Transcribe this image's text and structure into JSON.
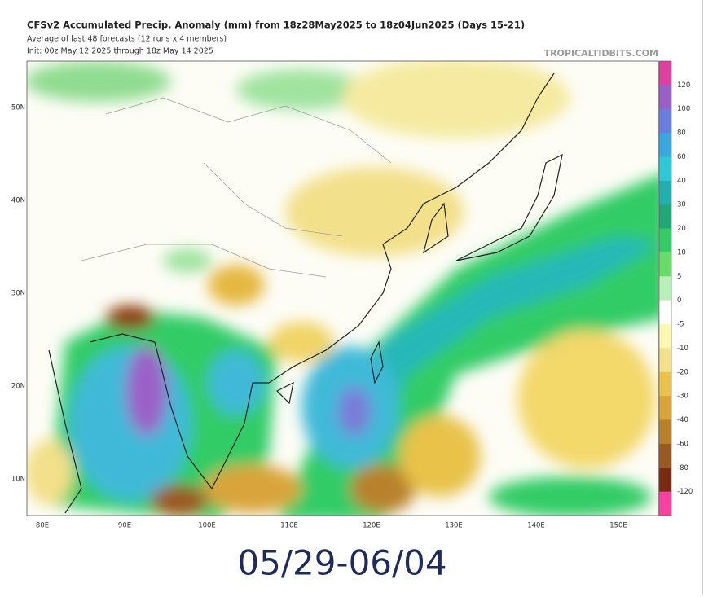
{
  "header": {
    "title": "CFSv2 Accumulated Precip. Anomaly (mm) from 18z28May2025 to 18z04Jun2025 (Days 15-21)",
    "subtitle": "Average of last 48 forecasts (12 runs x 4 members)",
    "init": "Init: 00z May 12 2025 through 18z May 14 2025",
    "watermark": "TROPICALTIDBITS.COM"
  },
  "colorbar": {
    "labels": [
      120,
      100,
      80,
      60,
      40,
      30,
      20,
      10,
      5,
      0,
      -5,
      -10,
      -20,
      -30,
      -40,
      -60,
      -80,
      -120
    ]
  },
  "axes": {
    "lat_labels": [
      "50N",
      "40N",
      "30N",
      "20N",
      "10N"
    ],
    "lon_labels": [
      "80E",
      "90E",
      "100E",
      "110E",
      "120E",
      "130E",
      "140E",
      "150E"
    ]
  },
  "caption": "05/29-06/04"
}
